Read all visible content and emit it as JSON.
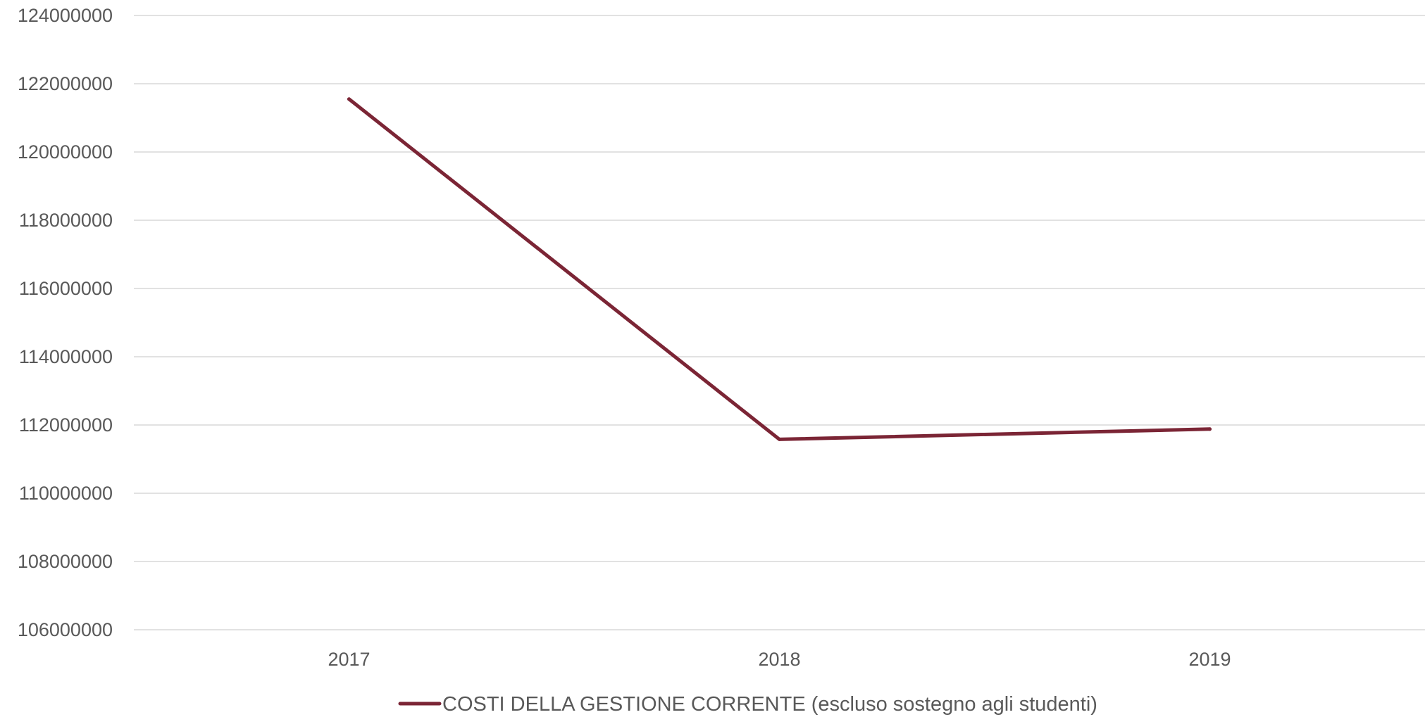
{
  "chart_data": {
    "type": "line",
    "title": "",
    "xlabel": "",
    "ylabel": "",
    "x": [
      "2017",
      "2018",
      "2019"
    ],
    "ylim": [
      106000000,
      124000000
    ],
    "y_ticks": [
      "106000000",
      "108000000",
      "110000000",
      "112000000",
      "114000000",
      "116000000",
      "118000000",
      "120000000",
      "122000000",
      "124000000"
    ],
    "grid": true,
    "legend_position": "bottom",
    "series": [
      {
        "name": "COSTI DELLA GESTIONE CORRENTE (escluso sostegno agli studenti)",
        "values": [
          121550000,
          111580000,
          111880000
        ],
        "color": "#7b2535"
      }
    ]
  }
}
